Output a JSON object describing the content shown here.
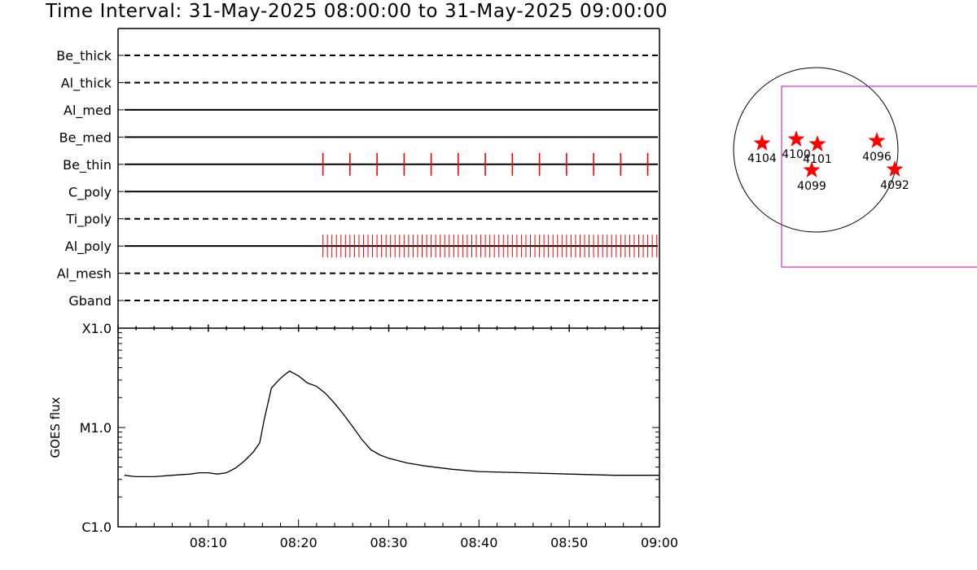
{
  "title": "Time Interval: 31-May-2025 08:00:00 to 31-May-2025 09:00:00",
  "colors": {
    "event": "#ff0000",
    "fov": "#cc00cc",
    "axis": "#000000"
  },
  "chart_data": [
    {
      "type": "line",
      "name": "filter-timeline",
      "x_range_minutes": [
        0,
        60
      ],
      "rows": [
        {
          "label": "Be_thick",
          "style": "dashed",
          "events": []
        },
        {
          "label": "Al_thick",
          "style": "dashed",
          "events": []
        },
        {
          "label": "Al_med",
          "style": "solid",
          "events": []
        },
        {
          "label": "Be_med",
          "style": "solid",
          "events": []
        },
        {
          "label": "Be_thin",
          "style": "solid",
          "events": [
            22.7,
            25.7,
            28.7,
            31.7,
            34.7,
            37.7,
            40.7,
            43.7,
            46.7,
            49.7,
            52.7,
            55.7,
            58.7
          ]
        },
        {
          "label": "C_poly",
          "style": "solid",
          "events": []
        },
        {
          "label": "Ti_poly",
          "style": "dashed",
          "events": []
        },
        {
          "label": "Al_poly",
          "style": "solid",
          "events_dense": {
            "start": 22.7,
            "end": 59.8,
            "step": 0.5
          }
        },
        {
          "label": "Al_mesh",
          "style": "dashed",
          "events": []
        },
        {
          "label": "Gband",
          "style": "dashed",
          "events": []
        }
      ]
    },
    {
      "type": "line",
      "name": "goes-flux",
      "ylabel": "GOES flux",
      "yscale": "log",
      "ylim": [
        1e-06,
        0.0001
      ],
      "yticks": [
        {
          "label": "C1.0",
          "value": 1e-06
        },
        {
          "label": "M1.0",
          "value": 1e-05
        },
        {
          "label": "X1.0",
          "value": 0.0001
        }
      ],
      "xlim": [
        "08:00",
        "09:00"
      ],
      "xticks": [
        "08:10",
        "08:20",
        "08:30",
        "08:40",
        "08:50",
        "09:00"
      ],
      "x": [
        0.7,
        2,
        4,
        6,
        8,
        9,
        10,
        11,
        12,
        13,
        14,
        15,
        15.7,
        16.2,
        17,
        17.8,
        18.3,
        19,
        20,
        21,
        22,
        23,
        24,
        25,
        26,
        27,
        28,
        29,
        30,
        32,
        34,
        37,
        40,
        45,
        50,
        55,
        60
      ],
      "y": [
        3.3e-06,
        3.2e-06,
        3.2e-06,
        3.3e-06,
        3.4e-06,
        3.5e-06,
        3.5e-06,
        3.4e-06,
        3.5e-06,
        3.9e-06,
        4.6e-06,
        5.7e-06,
        7e-06,
        1.2e-05,
        2.5e-05,
        3e-05,
        3.3e-05,
        3.7e-05,
        3.3e-05,
        2.8e-05,
        2.6e-05,
        2.2e-05,
        1.75e-05,
        1.35e-05,
        1.02e-05,
        7.6e-06,
        6e-06,
        5.3e-06,
        4.9e-06,
        4.4e-06,
        4.1e-06,
        3.8e-06,
        3.6e-06,
        3.5e-06,
        3.4e-06,
        3.3e-06,
        3.3e-06
      ]
    }
  ],
  "sun_map": {
    "regions": [
      {
        "label": "4104"
      },
      {
        "label": "4100"
      },
      {
        "label": "4101"
      },
      {
        "label": "4099"
      },
      {
        "label": "4096"
      },
      {
        "label": "4092"
      }
    ]
  }
}
